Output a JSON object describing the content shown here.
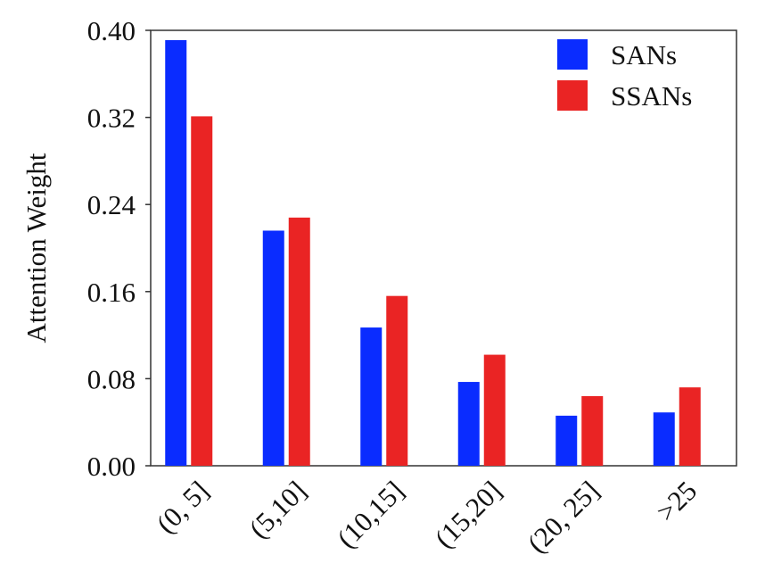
{
  "chart_data": {
    "type": "bar",
    "title": "",
    "xlabel": "",
    "ylabel": "Attention Weight",
    "categories": [
      "(0, 5]",
      "(5,10]",
      "(10,15]",
      "(15,20]",
      "(20, 25]",
      ">25"
    ],
    "series": [
      {
        "name": "SANs",
        "color": "#0a2cff",
        "values": [
          0.391,
          0.216,
          0.127,
          0.077,
          0.046,
          0.049
        ]
      },
      {
        "name": "SSANs",
        "color": "#ea2424",
        "values": [
          0.321,
          0.228,
          0.156,
          0.102,
          0.064,
          0.072
        ]
      }
    ],
    "ylim": [
      0,
      0.4
    ],
    "yticks": [
      "0.00",
      "0.08",
      "0.16",
      "0.24",
      "0.32",
      "0.40"
    ],
    "legend": "top-right",
    "grid": false
  }
}
